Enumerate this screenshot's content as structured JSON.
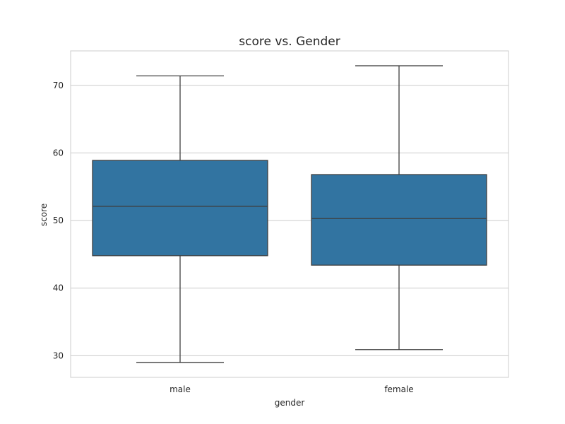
{
  "chart_data": {
    "type": "box",
    "title": "score vs. Gender",
    "xlabel": "gender",
    "ylabel": "score",
    "categories": [
      "male",
      "female"
    ],
    "boxes": [
      {
        "category": "male",
        "min": 29.0,
        "q1": 44.8,
        "median": 52.1,
        "q3": 58.9,
        "max": 71.4
      },
      {
        "category": "female",
        "min": 30.9,
        "q1": 43.4,
        "median": 50.3,
        "q3": 56.8,
        "max": 72.9
      }
    ],
    "ylim": [
      26.8,
      75.1
    ],
    "yticks": [
      30,
      40,
      50,
      60,
      70
    ],
    "grid": true,
    "colors": {
      "box": "#3274a1",
      "line": "#3f3f3f",
      "grid": "#cccccc",
      "frame": "#cccccc"
    }
  }
}
